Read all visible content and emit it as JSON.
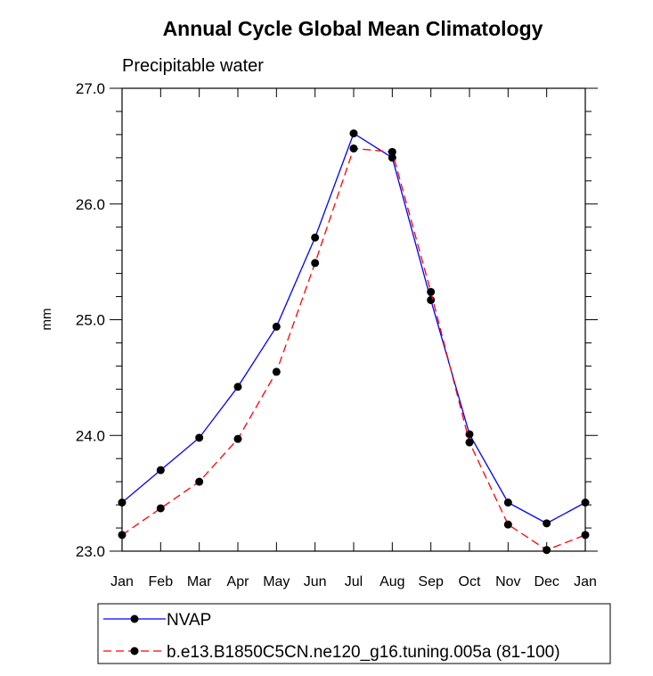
{
  "chart_data": {
    "type": "line",
    "title": "Annual Cycle Global Mean Climatology",
    "subtitle": "Precipitable water",
    "xlabel": "",
    "ylabel": "mm",
    "categories": [
      "Jan",
      "Feb",
      "Mar",
      "Apr",
      "May",
      "Jun",
      "Jul",
      "Aug",
      "Sep",
      "Oct",
      "Nov",
      "Dec",
      "Jan"
    ],
    "ylim": [
      23.0,
      27.0
    ],
    "y_ticks": [
      "23.0",
      "24.0",
      "25.0",
      "26.0",
      "27.0"
    ],
    "grid": false,
    "legend_position": "bottom",
    "series": [
      {
        "name": "NVAP",
        "color": "#0000ff",
        "dashed": false,
        "values": [
          23.42,
          23.7,
          23.98,
          24.42,
          24.94,
          25.71,
          26.61,
          26.4,
          25.17,
          24.01,
          23.42,
          23.24,
          23.42
        ]
      },
      {
        "name": "b.e13.B1850C5CN.ne120_g16.tuning.005a (81-100)",
        "color": "#ff0000",
        "dashed": true,
        "values": [
          23.14,
          23.37,
          23.6,
          23.97,
          24.55,
          25.49,
          26.48,
          26.45,
          25.24,
          23.94,
          23.23,
          23.01,
          23.14
        ]
      }
    ]
  }
}
